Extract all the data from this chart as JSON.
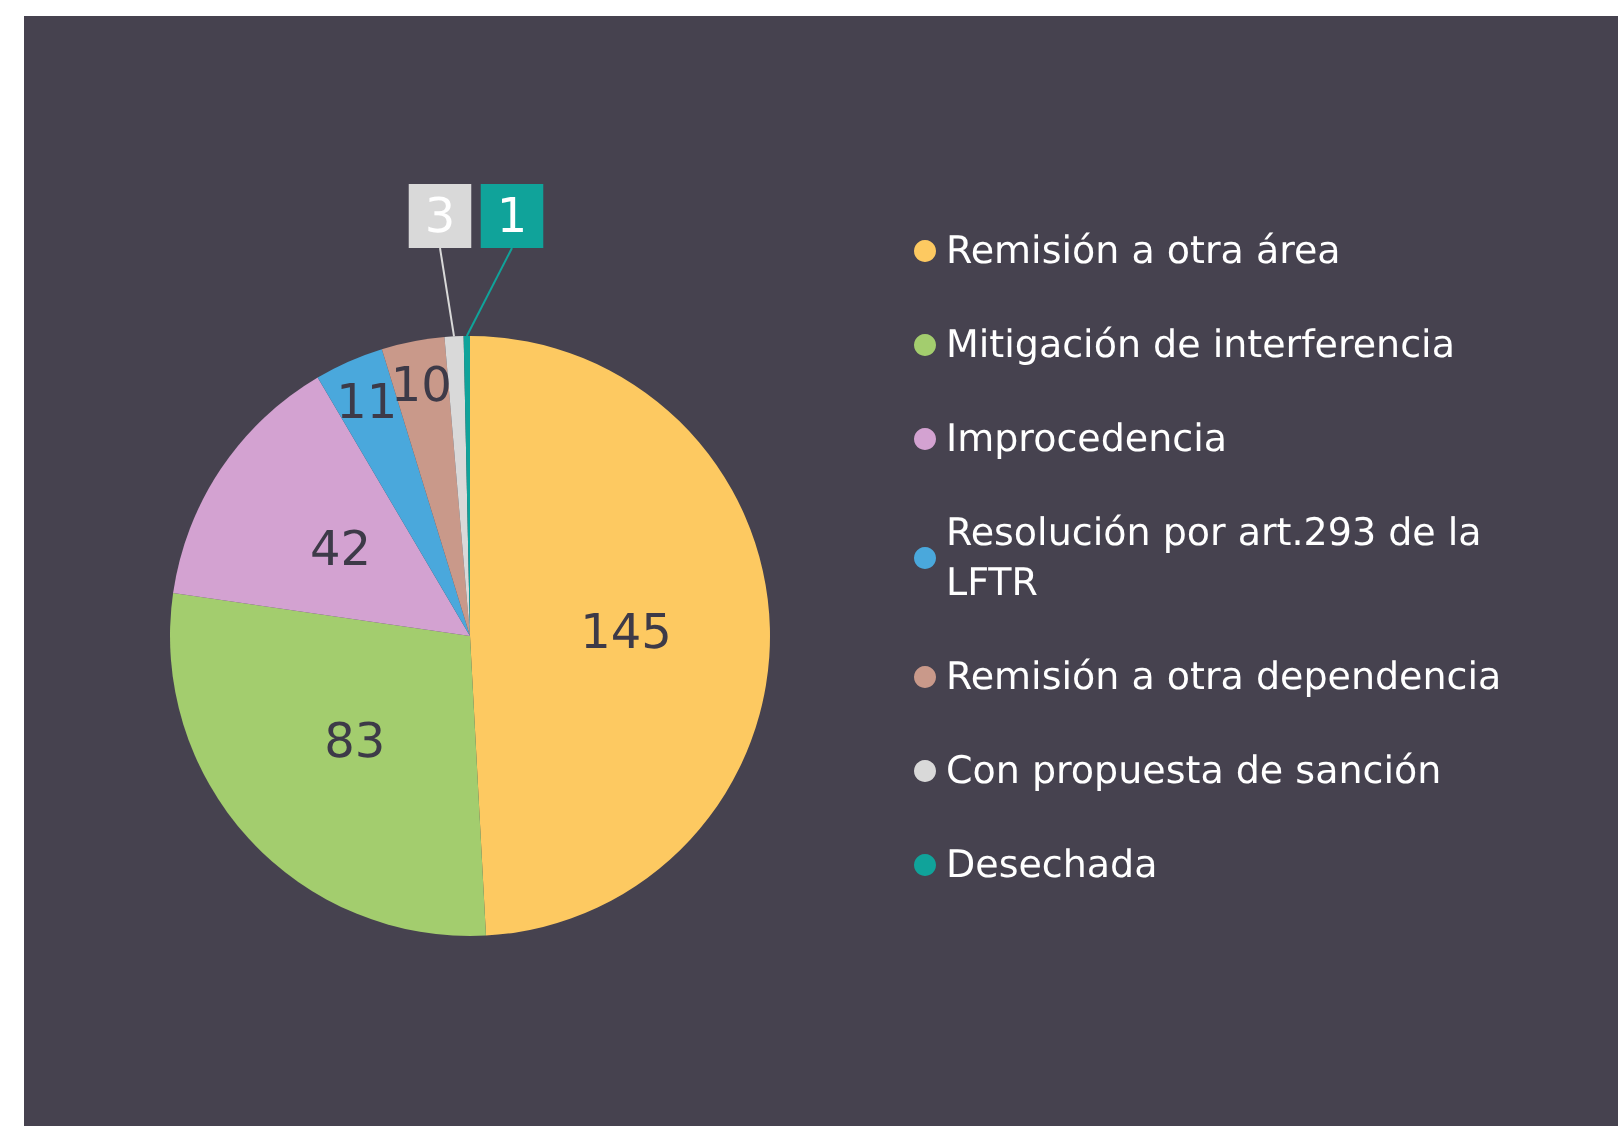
{
  "chart_data": {
    "type": "pie",
    "categories": [
      "Remisión a otra área",
      "Mitigación de interferencia",
      "Improcedencia",
      "Resolución por art.293 de la LFTR",
      "Remisión a otra dependencia",
      "Con propuesta de sanción",
      "Desechada"
    ],
    "values": [
      145,
      83,
      42,
      11,
      10,
      3,
      1
    ],
    "colors": [
      "#fdc961",
      "#a3cd6e",
      "#d3a2d1",
      "#4aa8dc",
      "#c9998a",
      "#d9d9d9",
      "#10a39a"
    ],
    "data_labels": true,
    "legend": "right"
  }
}
